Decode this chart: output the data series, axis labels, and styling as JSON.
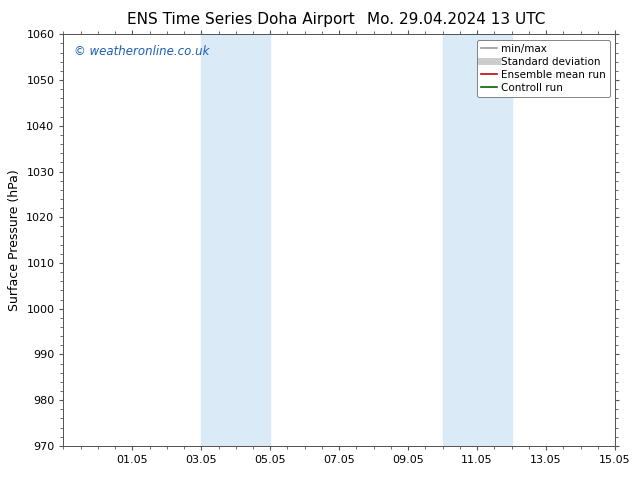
{
  "title_left": "ENS Time Series Doha Airport",
  "title_right": "Mo. 29.04.2024 13 UTC",
  "ylabel": "Surface Pressure (hPa)",
  "ylim": [
    970,
    1060
  ],
  "yticks": [
    970,
    980,
    990,
    1000,
    1010,
    1020,
    1030,
    1040,
    1050,
    1060
  ],
  "xlim": [
    0,
    16
  ],
  "xtick_labels": [
    "01.05",
    "03.05",
    "05.05",
    "07.05",
    "09.05",
    "11.05",
    "13.05",
    "15.05"
  ],
  "xtick_positions": [
    2,
    4,
    6,
    8,
    10,
    12,
    14,
    16
  ],
  "shade_bands": [
    {
      "x_start": 4.0,
      "x_end": 5.0
    },
    {
      "x_start": 5.0,
      "x_end": 6.0
    },
    {
      "x_start": 11.0,
      "x_end": 12.0
    },
    {
      "x_start": 12.0,
      "x_end": 13.0
    }
  ],
  "shade_color": "#daeaf7",
  "watermark_text": "© weatheronline.co.uk",
  "watermark_color": "#1a5fb4",
  "legend_entries": [
    {
      "label": "min/max",
      "color": "#999999",
      "lw": 1.2
    },
    {
      "label": "Standard deviation",
      "color": "#cccccc",
      "lw": 5
    },
    {
      "label": "Ensemble mean run",
      "color": "#cc0000",
      "lw": 1.2
    },
    {
      "label": "Controll run",
      "color": "#006600",
      "lw": 1.2
    }
  ],
  "bg_color": "#ffffff",
  "spine_color": "#555555",
  "title_fontsize": 11,
  "axis_label_fontsize": 9,
  "tick_fontsize": 8,
  "legend_fontsize": 7.5,
  "watermark_fontsize": 8.5
}
